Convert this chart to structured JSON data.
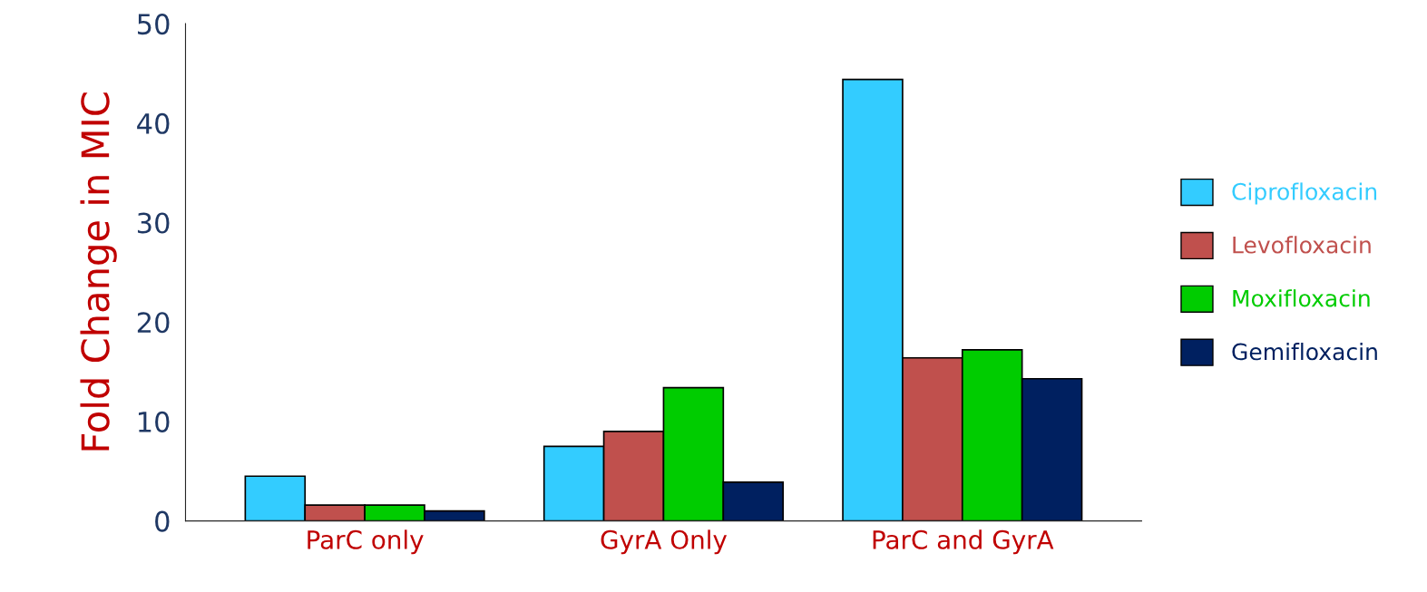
{
  "chart_data": {
    "type": "bar",
    "ylabel": "Fold Change in MIC",
    "categories": [
      "ParC only",
      "GyrA Only",
      "ParC and GyrA"
    ],
    "series": [
      {
        "name": "Ciprofloxacin",
        "color": "#33ccff",
        "values": [
          4.5,
          7.5,
          44.4
        ]
      },
      {
        "name": "Levofloxacin",
        "color": "#c0504d",
        "values": [
          1.6,
          9,
          16.4
        ]
      },
      {
        "name": "Moxifloxacin",
        "color": "#00cc00",
        "values": [
          1.6,
          13.4,
          17.2
        ]
      },
      {
        "name": "Gemifloxacin",
        "color": "#002060",
        "values": [
          1.0,
          3.9,
          14.3
        ]
      }
    ],
    "ylim": [
      0,
      50
    ],
    "yticks": [
      0,
      10,
      20,
      30,
      40,
      50
    ],
    "grid": false,
    "legend": "right"
  }
}
